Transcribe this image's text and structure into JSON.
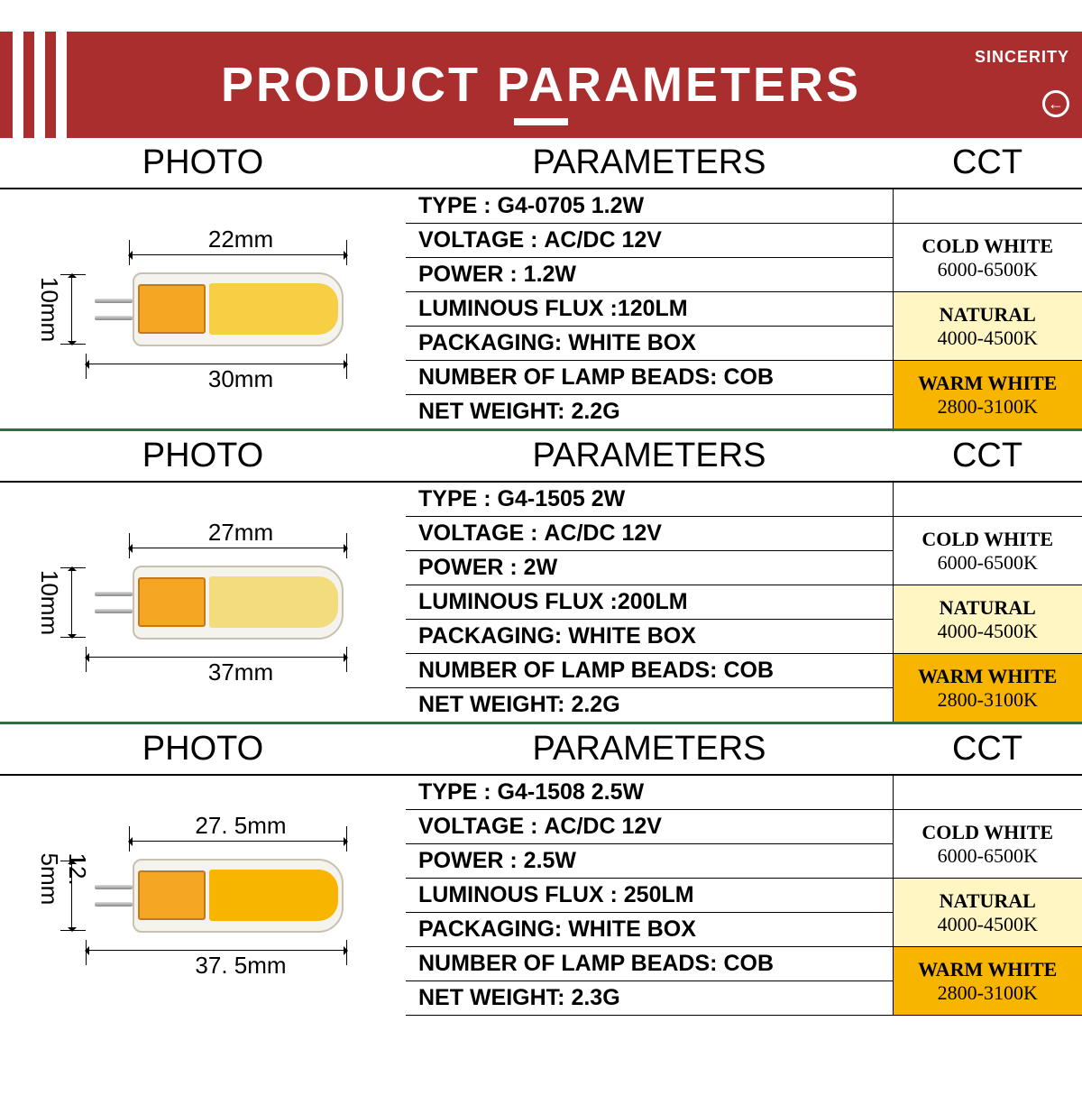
{
  "banner": {
    "title": "PRODUCT PARAMETERS",
    "brand": "SINCERITY",
    "banner_bg": "#aa2e2d",
    "section_divider_color": "#2f6d43"
  },
  "column_headers": {
    "photo": "PHOTO",
    "parameters": "PARAMETERS",
    "cct": "CCT"
  },
  "cct_variants": [
    {
      "name": "COLD WHITE",
      "range": "6000-6500K",
      "bg": "#ffffff"
    },
    {
      "name": "NATURAL",
      "range": "4000-4500K",
      "bg": "#fff6c3"
    },
    {
      "name": "WARM WHITE",
      "range": "2800-3100K",
      "bg": "#f8b500"
    }
  ],
  "products": [
    {
      "photo": {
        "body_top": "22mm",
        "total_bottom": "30mm",
        "height_left": "10mm",
        "cob_color": "#f7cf45"
      },
      "params": [
        {
          "label": "TYPE : ",
          "value": "G4-0705 1.2W"
        },
        {
          "label": "VOLTAGE : ",
          "value": "AC/DC 12V"
        },
        {
          "label": "POWER : ",
          "value": "1.2W"
        },
        {
          "label": "LUMINOUS FLUX :",
          "value": "120LM"
        },
        {
          "label": "PACKAGING: ",
          "value": "WHITE BOX"
        },
        {
          "label": "NUMBER OF LAMP BEADS: ",
          "value": "COB"
        },
        {
          "label": "NET WEIGHT: ",
          "value": "2.2G"
        }
      ]
    },
    {
      "photo": {
        "body_top": "27mm",
        "total_bottom": "37mm",
        "height_left": "10mm",
        "cob_color": "#f3dc7d"
      },
      "params": [
        {
          "label": "TYPE : ",
          "value": "G4-1505 2W"
        },
        {
          "label": "VOLTAGE : ",
          "value": "AC/DC 12V"
        },
        {
          "label": "POWER : ",
          "value": "2W"
        },
        {
          "label": "LUMINOUS FLUX :",
          "value": "200LM"
        },
        {
          "label": "PACKAGING: ",
          "value": "WHITE BOX"
        },
        {
          "label": "NUMBER OF LAMP BEADS: ",
          "value": "COB"
        },
        {
          "label": "NET WEIGHT: ",
          "value": "2.2G"
        }
      ]
    },
    {
      "photo": {
        "body_top": "27. 5mm",
        "total_bottom": "37. 5mm",
        "height_left": "12. 5mm",
        "cob_color": "#f8b500"
      },
      "params": [
        {
          "label": "TYPE : ",
          "value": "G4-1508 2.5W"
        },
        {
          "label": "VOLTAGE : ",
          "value": "AC/DC 12V"
        },
        {
          "label": "POWER : ",
          "value": "2.5W"
        },
        {
          "label": "LUMINOUS FLUX : ",
          "value": "250LM"
        },
        {
          "label": "PACKAGING: ",
          "value": "WHITE BOX"
        },
        {
          "label": "NUMBER OF LAMP BEADS: ",
          "value": "COB"
        },
        {
          "label": "NET WEIGHT: ",
          "value": "2.3G"
        }
      ]
    }
  ]
}
